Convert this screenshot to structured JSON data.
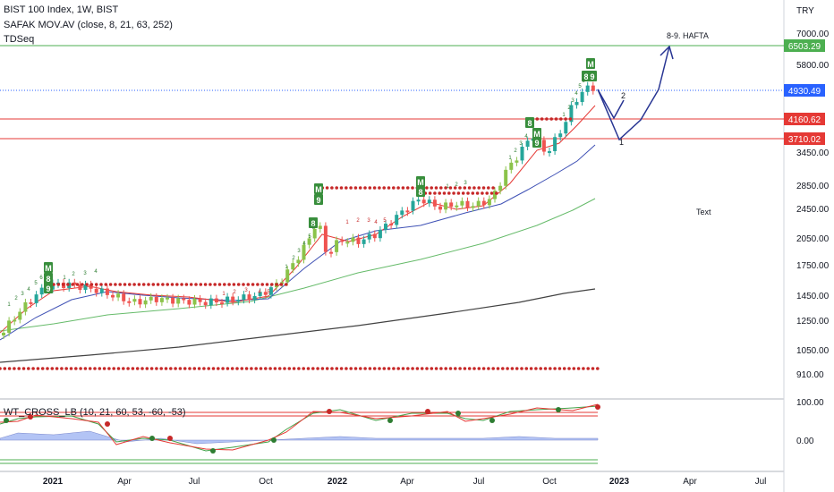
{
  "header": {
    "symbol_line": "BIST 100 Index, 1W, BIST",
    "indicator_ma": "SAFAK  MOV.AV (close, 8, 21, 63, 252)",
    "indicator_td": "TDSeq",
    "indicator_wt": "WT_CROSS_LB (10, 21, 60, 53, -60, -53)",
    "currency": "TRY"
  },
  "price_axis": {
    "ticks": [
      "7000.00",
      "5800.00",
      "3450.00",
      "2850.00",
      "2450.00",
      "2050.00",
      "1750.00",
      "1450.00",
      "1250.00",
      "1050.00",
      "910.00"
    ]
  },
  "wt_axis": {
    "ticks": [
      "100.00",
      "0.00"
    ]
  },
  "time_axis": {
    "labels": [
      "2021",
      "Apr",
      "Jul",
      "Oct",
      "2022",
      "Apr",
      "Jul",
      "Oct",
      "2023",
      "Apr",
      "Jul"
    ]
  },
  "price_tags": [
    {
      "value": "6503.29",
      "color": "#4caf50"
    },
    {
      "value": "4930.49",
      "color": "#2962ff"
    },
    {
      "value": "4160.62",
      "color": "#e53935"
    },
    {
      "value": "3710.02",
      "color": "#e53935"
    }
  ],
  "annotations": {
    "target_label": "8-9. HAFTA",
    "point_1": "1",
    "point_2": "2",
    "text_note": "Text"
  },
  "td_labels": [
    "M",
    "8",
    "9",
    "1",
    "2",
    "3",
    "4",
    "5",
    "6",
    "7"
  ],
  "colors": {
    "up_candle": "#26a69a",
    "up_candle_alt": "#8bc34a",
    "down_candle": "#ef5350",
    "ma8": "#e53935",
    "ma21": "#3f51b5",
    "ma63": "#66bb6a",
    "ma252": "#424242",
    "projection": "#283593"
  }
}
